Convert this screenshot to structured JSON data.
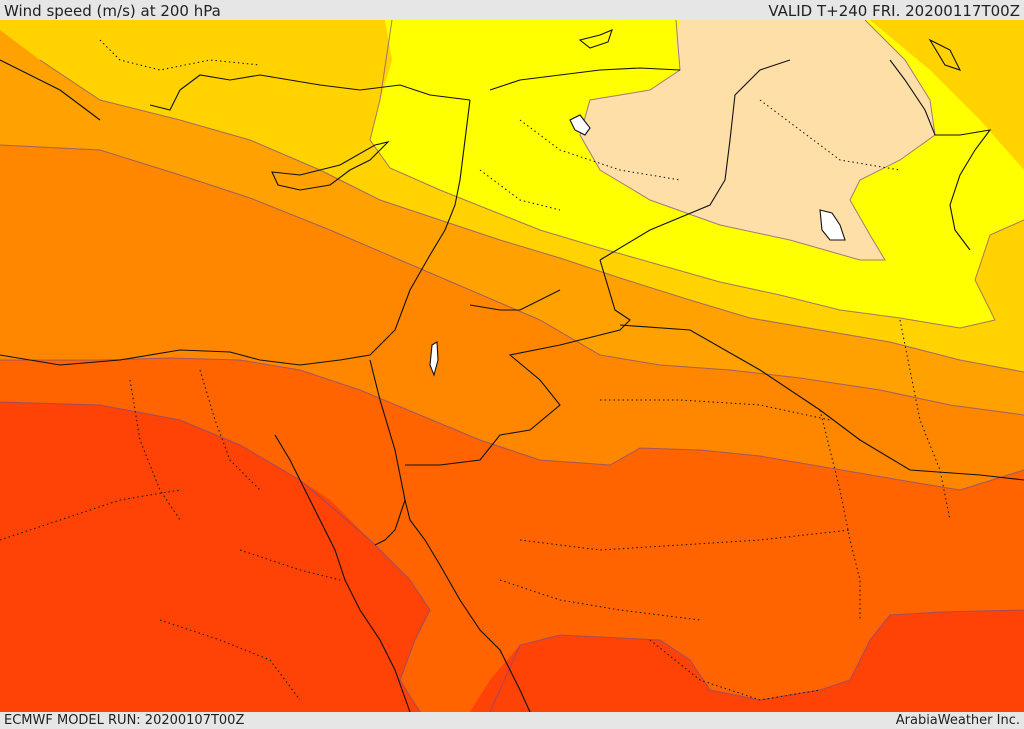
{
  "header": {
    "title": "Wind speed (m/s) at 200 hPa",
    "valid": "VALID T+240 FRI. 20200117T00Z"
  },
  "footer": {
    "model_run": "ECMWF MODEL RUN: 20200107T00Z",
    "credit": "ArabiaWeather Inc."
  },
  "map": {
    "bands": [
      {
        "name": "band-deep-red",
        "color": "#ff4205"
      },
      {
        "name": "band-red-orange",
        "color": "#ff6400"
      },
      {
        "name": "band-orange",
        "color": "#ff8700"
      },
      {
        "name": "band-amber",
        "color": "#ffa100"
      },
      {
        "name": "band-gold",
        "color": "#ffd200"
      },
      {
        "name": "band-yellow",
        "color": "#ffff00"
      },
      {
        "name": "band-pale",
        "color": "#ffdfa8"
      }
    ]
  }
}
